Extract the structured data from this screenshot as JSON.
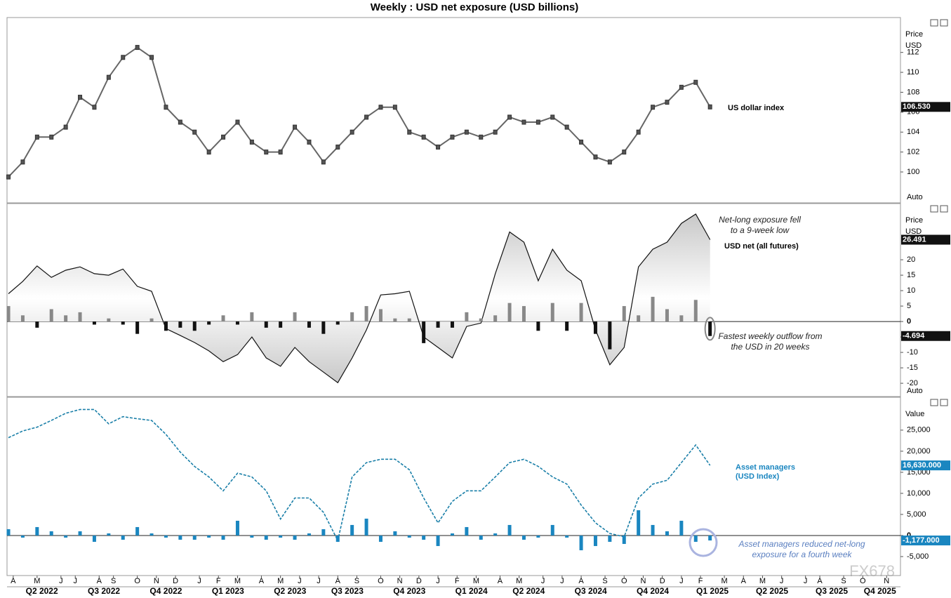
{
  "title": "Weekly : USD net exposure (USD billions)",
  "watermark": "FX678",
  "chart_data": [
    {
      "type": "line",
      "y_axis_label": [
        "Price",
        "USD"
      ],
      "scale": "Auto",
      "xlim": [
        -0.3,
        186.9
      ],
      "x": [
        0,
        3,
        6,
        9,
        12,
        15,
        18,
        21,
        24,
        27,
        30,
        33,
        36,
        39,
        42,
        45,
        48,
        51,
        54,
        57,
        60,
        63,
        66,
        69,
        72,
        75,
        78,
        81,
        84,
        87,
        90,
        93,
        96,
        99,
        102,
        105,
        108,
        111,
        114,
        117,
        120,
        123,
        126,
        129,
        132,
        135,
        138,
        141,
        144,
        147
      ],
      "ylim": [
        96.9,
        115.5
      ],
      "yticks": [
        100,
        102,
        104,
        106,
        108,
        110,
        112
      ],
      "series": [
        {
          "name": "US dollar index",
          "color": "#666666",
          "last_label": "106.530",
          "values": [
            99.5,
            101,
            103.5,
            103.5,
            104.5,
            107.5,
            106.5,
            109.5,
            111.5,
            112.5,
            111.5,
            106.5,
            105,
            104,
            102,
            103.5,
            105,
            103,
            102,
            102,
            104.5,
            103,
            101,
            102.5,
            104,
            105.5,
            106.5,
            106.5,
            104,
            103.5,
            102.5,
            103.5,
            104,
            103.5,
            104,
            105.5,
            105,
            105,
            105.5,
            104.5,
            103,
            101.5,
            101,
            102,
            104,
            106.5,
            107,
            108.5,
            109,
            106.53
          ]
        }
      ]
    },
    {
      "type": "line",
      "y_axis_label": [
        "Price",
        "USD"
      ],
      "scale": "Auto",
      "xlim": [
        -0.3,
        186.9
      ],
      "x": [
        0,
        3,
        6,
        9,
        12,
        15,
        18,
        21,
        24,
        27,
        30,
        33,
        36,
        39,
        42,
        45,
        48,
        51,
        54,
        57,
        60,
        63,
        66,
        69,
        72,
        75,
        78,
        81,
        84,
        87,
        90,
        93,
        96,
        99,
        102,
        105,
        108,
        111,
        114,
        117,
        120,
        123,
        126,
        129,
        132,
        135,
        138,
        141,
        144,
        147
      ],
      "ylim": [
        -24.3,
        38.2
      ],
      "yticks": [
        -20,
        -15,
        -10,
        -5,
        0,
        5,
        10,
        15,
        20
      ],
      "annotations": [
        "Net-long exposure fell to a 9-week low",
        "Fastest weekly outflow from the USD in 20 weeks"
      ],
      "series": [
        {
          "name": "USD net (all futures)",
          "kind": "area",
          "color": "#111111",
          "last_label": "26.491",
          "values": [
            9,
            13,
            18,
            14.3,
            16.6,
            17.7,
            15.5,
            15,
            17,
            11.4,
            9.8,
            -2.3,
            -4.5,
            -6.8,
            -9.5,
            -13,
            -10.7,
            -5,
            -11.8,
            -14.5,
            -8.4,
            -13,
            -16.4,
            -19.8,
            -11.8,
            -2.7,
            8.6,
            9,
            9.8,
            -5,
            -8.4,
            -11.8,
            -1.6,
            -0.5,
            15.5,
            29,
            25.7,
            13.2,
            23.4,
            16.6,
            13.2,
            -2.7,
            -14,
            -8.4,
            17.7,
            23.4,
            25.7,
            31.8,
            34.8,
            26.491
          ]
        },
        {
          "kind": "bar",
          "color": "#888888",
          "negative_color": "#111111",
          "last_label": "-4.694",
          "values": [
            5,
            2,
            -2,
            4,
            2,
            3,
            -1,
            1,
            -1,
            -4,
            1,
            -3,
            -2,
            -3,
            -1,
            2,
            -1,
            3,
            -2,
            -2,
            3,
            -2,
            -4,
            -1,
            3,
            5,
            4,
            1,
            1,
            -7,
            -2,
            -2,
            3,
            1,
            2,
            6,
            5,
            -3,
            6,
            -3,
            6,
            -4,
            -9,
            5,
            2,
            8,
            4,
            2,
            7,
            -4.694
          ]
        }
      ]
    },
    {
      "type": "line",
      "y_axis_label": [
        "Value"
      ],
      "xlim": [
        -0.3,
        186.9
      ],
      "x": [
        0,
        3,
        6,
        9,
        12,
        15,
        18,
        21,
        24,
        27,
        30,
        33,
        36,
        39,
        42,
        45,
        48,
        51,
        54,
        57,
        60,
        63,
        66,
        69,
        72,
        75,
        78,
        81,
        84,
        87,
        90,
        93,
        96,
        99,
        102,
        105,
        108,
        111,
        114,
        117,
        120,
        123,
        126,
        129,
        132,
        135,
        138,
        141,
        144,
        147
      ],
      "ylim": [
        -9500,
        32800
      ],
      "yticks": [
        {
          "value": -5000,
          "label": "-5,000"
        },
        0,
        {
          "value": 5000,
          "label": "5,000"
        },
        {
          "value": 10000,
          "label": "10,000"
        },
        {
          "value": 15000,
          "label": "15,000"
        },
        {
          "value": 20000,
          "label": "20,000"
        },
        {
          "value": 25000,
          "label": "25,000"
        }
      ],
      "annotations": [
        "Asset managers reduced net-long exposure for a fourth week"
      ],
      "series": [
        {
          "name": "Asset managers (USD Index)",
          "kind": "dashed",
          "color": "#1a7fa8",
          "last_label": "16,630.000",
          "values": [
            23200,
            24800,
            25700,
            27300,
            29000,
            29900,
            29900,
            26500,
            28200,
            27700,
            27300,
            24000,
            19800,
            16400,
            13900,
            10600,
            14800,
            13900,
            10600,
            3900,
            8900,
            8900,
            5500,
            -1200,
            13900,
            17300,
            18100,
            18100,
            15600,
            8900,
            3000,
            8100,
            10600,
            10600,
            13900,
            17300,
            18100,
            16400,
            13900,
            12200,
            7200,
            3000,
            500,
            -300,
            8900,
            12200,
            13100,
            17300,
            21500,
            16630
          ]
        },
        {
          "kind": "bar",
          "color": "#1a86c0",
          "negative_color": "#1a86c0",
          "last_label": "-1,177.000",
          "values": [
            1500,
            -500,
            2000,
            1000,
            -500,
            1000,
            -1500,
            500,
            -1000,
            2000,
            500,
            -500,
            -1000,
            -1000,
            -500,
            -1000,
            3500,
            -500,
            -1000,
            -500,
            -1000,
            500,
            1500,
            -1500,
            2500,
            4000,
            -1500,
            1000,
            -500,
            -1000,
            -2500,
            500,
            2000,
            -1000,
            500,
            2500,
            -1000,
            -500,
            2500,
            -500,
            -3500,
            -2500,
            -1500,
            -2000,
            6000,
            2500,
            1000,
            3500,
            -1500,
            -1177
          ]
        }
      ],
      "xticks": [
        {
          "value": 1,
          "label": "A"
        },
        {
          "value": 6,
          "label": "M"
        },
        {
          "value": 11,
          "label": "J"
        },
        {
          "value": 14,
          "label": "J"
        },
        {
          "value": 19,
          "label": "A"
        },
        {
          "value": 22,
          "label": "S"
        },
        {
          "value": 27,
          "label": "O"
        },
        {
          "value": 31,
          "label": "N"
        },
        {
          "value": 35,
          "label": "D"
        },
        {
          "value": 40,
          "label": "J"
        },
        {
          "value": 44,
          "label": "F"
        },
        {
          "value": 48,
          "label": "M"
        },
        {
          "value": 53,
          "label": "A"
        },
        {
          "value": 57,
          "label": "M"
        },
        {
          "value": 61,
          "label": "J"
        },
        {
          "value": 65,
          "label": "J"
        },
        {
          "value": 69,
          "label": "A"
        },
        {
          "value": 73,
          "label": "S"
        },
        {
          "value": 78,
          "label": "O"
        },
        {
          "value": 82,
          "label": "N"
        },
        {
          "value": 86,
          "label": "D"
        },
        {
          "value": 90,
          "label": "J"
        },
        {
          "value": 94,
          "label": "F"
        },
        {
          "value": 98,
          "label": "M"
        },
        {
          "value": 103,
          "label": "A"
        },
        {
          "value": 107,
          "label": "M"
        },
        {
          "value": 112,
          "label": "J"
        },
        {
          "value": 116,
          "label": "J"
        },
        {
          "value": 120,
          "label": "A"
        },
        {
          "value": 125,
          "label": "S"
        },
        {
          "value": 129,
          "label": "O"
        },
        {
          "value": 133,
          "label": "N"
        },
        {
          "value": 137,
          "label": "D"
        },
        {
          "value": 141,
          "label": "J"
        },
        {
          "value": 145,
          "label": "F"
        },
        {
          "value": 150,
          "label": "M"
        },
        {
          "value": 154,
          "label": "A"
        },
        {
          "value": 158,
          "label": "M"
        },
        {
          "value": 162,
          "label": "J"
        },
        {
          "value": 167,
          "label": "J"
        },
        {
          "value": 170,
          "label": "A"
        },
        {
          "value": 175,
          "label": "S"
        },
        {
          "value": 179,
          "label": "O"
        },
        {
          "value": 184,
          "label": "N"
        }
      ],
      "quarters": [
        {
          "value": 7,
          "label": "Q2 2022"
        },
        {
          "value": 20,
          "label": "Q3 2022"
        },
        {
          "value": 33,
          "label": "Q4 2022"
        },
        {
          "value": 46,
          "label": "Q1 2023"
        },
        {
          "value": 59,
          "label": "Q2 2023"
        },
        {
          "value": 71,
          "label": "Q3 2023"
        },
        {
          "value": 84,
          "label": "Q4 2023"
        },
        {
          "value": 97,
          "label": "Q1 2024"
        },
        {
          "value": 109,
          "label": "Q2 2024"
        },
        {
          "value": 122,
          "label": "Q3 2024"
        },
        {
          "value": 135,
          "label": "Q4 2024"
        },
        {
          "value": 147.5,
          "label": "Q1 2025"
        },
        {
          "value": 160,
          "label": "Q2 2025"
        },
        {
          "value": 172.5,
          "label": "Q3 2025"
        },
        {
          "value": 182.6,
          "label": "Q4 2025"
        }
      ]
    }
  ]
}
